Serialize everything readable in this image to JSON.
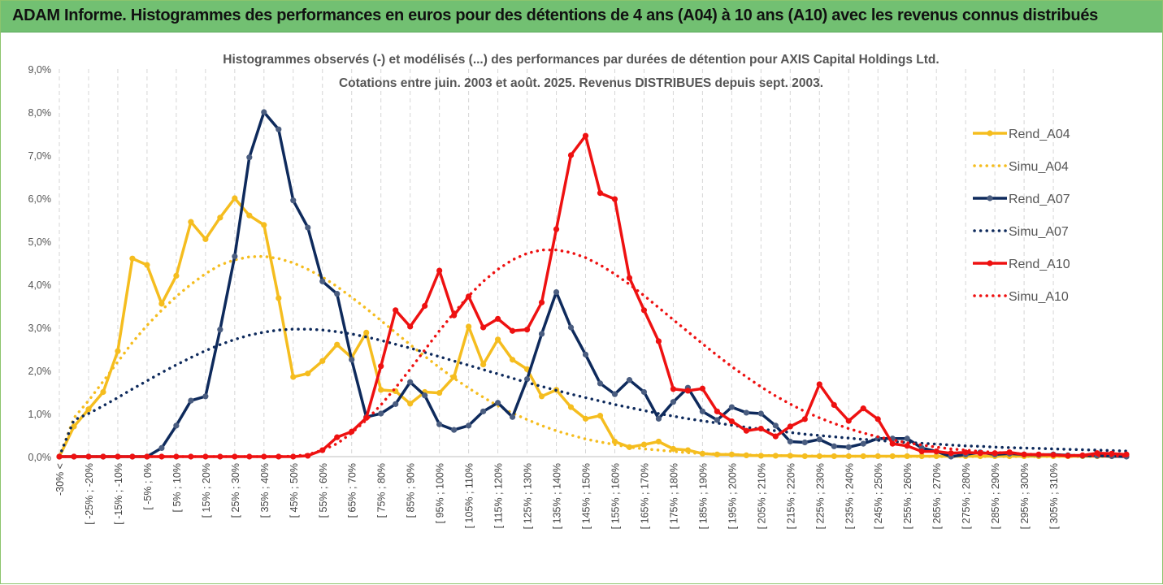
{
  "banner": {
    "title": "ADAM Informe. Histogrammes des performances en euros pour des détentions de 4 ans (A04) à 10 ans (A10) avec les revenus connus distribués"
  },
  "chart_data": {
    "type": "line",
    "title": "Histogrammes observés (-) et modélisés (...) des performances par durées de détention pour AXIS Capital Holdings Ltd.",
    "subtitle": "Cotations entre juin. 2003 et août. 2025. Revenus DISTRIBUES depuis sept. 2003.",
    "xlabel": "",
    "ylabel": "",
    "ylim": [
      0,
      9
    ],
    "yticks": [
      "0,0%",
      "1,0%",
      "2,0%",
      "3,0%",
      "4,0%",
      "5,0%",
      "6,0%",
      "7,0%",
      "8,0%",
      "9,0%"
    ],
    "grid": "vertical dashed",
    "legend": "right",
    "xticklabels": [
      "-30% <",
      "[ -25% ; -20%",
      "[ -15% ; -10%",
      "[ -5% ; 0%",
      "[ 5% ; 10%",
      "[ 15% ; 20%",
      "[ 25% ; 30%",
      "[ 35% ; 40%",
      "[ 45% ; 50%",
      "[ 55% ; 60%",
      "[ 65% ; 70%",
      "[ 75% ; 80%",
      "[ 85% ; 90%",
      "[ 95% ; 100%",
      "[ 105% ; 110%",
      "[ 115% ; 120%",
      "[ 125% ; 130%",
      "[ 135% ; 140%",
      "[ 145% ; 150%",
      "[ 155% ; 160%",
      "[ 165% ; 170%",
      "[ 175% ; 180%",
      "[ 185% ; 190%",
      "[ 195% ; 200%",
      "[ 205% ; 210%",
      "[ 215% ; 220%",
      "[ 225% ; 230%",
      "[ 235% ; 240%",
      "[ 245% ; 250%",
      "[ 255% ; 260%",
      "[ 265% ; 270%",
      "[ 275% ; 280%",
      "[ 285% ; 290%",
      "[ 295% ; 300%",
      "[ 305% ; 310%"
    ],
    "series": [
      {
        "name": "Rend_A04",
        "style": "solid-markers",
        "color": "#f5bd1f",
        "values": [
          0,
          0.7,
          1.1,
          1.5,
          2.45,
          4.6,
          4.45,
          3.55,
          4.2,
          5.45,
          5.05,
          5.55,
          6.0,
          5.6,
          5.38,
          3.68,
          1.85,
          1.93,
          2.22,
          2.6,
          2.3,
          2.88,
          1.55,
          1.52,
          1.23,
          1.5,
          1.48,
          1.85,
          3.02,
          2.14,
          2.72,
          2.25,
          2.03,
          1.4,
          1.55,
          1.15,
          0.88,
          0.95,
          0.35,
          0.22,
          0.28,
          0.35,
          0.18,
          0.15,
          0.07,
          0.05,
          0.05,
          0.03,
          0.02,
          0.02,
          0.02,
          0.01,
          0.01,
          0.01,
          0.01,
          0.01,
          0.01,
          0.01,
          0.01,
          0.01,
          0.01,
          0.01,
          0.01,
          0.01,
          0.01,
          0.01,
          0.01,
          0.01,
          0.01,
          0.01,
          0.01,
          0.01,
          0.01,
          0.01
        ]
      },
      {
        "name": "Simu_A04",
        "style": "dotted",
        "color": "#f5bd1f",
        "values": [
          0,
          0.9,
          1.3,
          1.75,
          2.2,
          2.65,
          3.05,
          3.4,
          3.72,
          4.0,
          4.25,
          4.45,
          4.57,
          4.64,
          4.65,
          4.6,
          4.5,
          4.35,
          4.17,
          3.95,
          3.7,
          3.44,
          3.16,
          2.88,
          2.6,
          2.33,
          2.07,
          1.82,
          1.59,
          1.38,
          1.18,
          1.01,
          0.86,
          0.72,
          0.6,
          0.5,
          0.41,
          0.34,
          0.28,
          0.22,
          0.18,
          0.15,
          0.12,
          0.09,
          0.07,
          0.06,
          0.05,
          0.04,
          0.03,
          0.02,
          0.02,
          0.015,
          0.012,
          0.01,
          0.008,
          0.006,
          0.005,
          0.004,
          0.003,
          0.002,
          0.002,
          0.001,
          0.001,
          0.001,
          0.001,
          0.001,
          0.001,
          0.001,
          0.001,
          0.001,
          0.001,
          0.001,
          0.001,
          0.001
        ]
      },
      {
        "name": "Rend_A07",
        "style": "solid-markers",
        "color": "#0e2a5c",
        "values": [
          0,
          0,
          0,
          0,
          0,
          0,
          0,
          0.2,
          0.72,
          1.3,
          1.4,
          2.95,
          4.65,
          6.95,
          8.0,
          7.6,
          5.95,
          5.32,
          4.07,
          3.78,
          2.25,
          0.92,
          1.0,
          1.22,
          1.73,
          1.42,
          0.75,
          0.62,
          0.72,
          1.05,
          1.25,
          0.92,
          1.8,
          2.85,
          3.82,
          3.0,
          2.37,
          1.7,
          1.45,
          1.78,
          1.5,
          0.88,
          1.27,
          1.6,
          1.05,
          0.85,
          1.15,
          1.02,
          1.0,
          0.72,
          0.35,
          0.33,
          0.4,
          0.24,
          0.22,
          0.3,
          0.42,
          0.42,
          0.42,
          0.2,
          0.12,
          0.0,
          0.05,
          0.1,
          0.05,
          0.07,
          0.05,
          0.04,
          0.05,
          0.03,
          0.02,
          0.02,
          0.01,
          0.0
        ]
      },
      {
        "name": "Simu_A07",
        "style": "dotted",
        "color": "#0e2a5c",
        "values": [
          0,
          0.85,
          1.0,
          1.18,
          1.37,
          1.57,
          1.76,
          1.95,
          2.13,
          2.3,
          2.46,
          2.6,
          2.72,
          2.82,
          2.89,
          2.94,
          2.96,
          2.96,
          2.94,
          2.9,
          2.85,
          2.78,
          2.7,
          2.61,
          2.52,
          2.42,
          2.32,
          2.22,
          2.12,
          2.02,
          1.92,
          1.82,
          1.72,
          1.63,
          1.54,
          1.45,
          1.37,
          1.29,
          1.21,
          1.14,
          1.07,
          1.0,
          0.94,
          0.88,
          0.83,
          0.78,
          0.73,
          0.68,
          0.64,
          0.6,
          0.56,
          0.52,
          0.49,
          0.46,
          0.43,
          0.4,
          0.38,
          0.35,
          0.33,
          0.31,
          0.29,
          0.27,
          0.25,
          0.24,
          0.22,
          0.21,
          0.2,
          0.19,
          0.18,
          0.17,
          0.16,
          0.15,
          0.14,
          0.13
        ]
      },
      {
        "name": "Rend_A10",
        "style": "solid-markers",
        "color": "#ee1111",
        "values": [
          0,
          0,
          0,
          0,
          0,
          0,
          0,
          0,
          0,
          0,
          0,
          0,
          0,
          0,
          0,
          0,
          0,
          0.02,
          0.15,
          0.45,
          0.58,
          0.9,
          2.1,
          3.4,
          3.02,
          3.5,
          4.32,
          3.28,
          3.72,
          3.0,
          3.2,
          2.92,
          2.95,
          3.58,
          5.28,
          7.0,
          7.45,
          6.12,
          5.98,
          4.15,
          3.4,
          2.68,
          1.57,
          1.53,
          1.58,
          1.05,
          0.82,
          0.6,
          0.65,
          0.47,
          0.7,
          0.87,
          1.68,
          1.2,
          0.83,
          1.12,
          0.87,
          0.3,
          0.25,
          0.12,
          0.12,
          0.08,
          0.1,
          0.08,
          0.08,
          0.1,
          0.05,
          0.05,
          0.04,
          0.02,
          0.03,
          0.08,
          0.07,
          0.05
        ]
      },
      {
        "name": "Simu_A10",
        "style": "dotted",
        "color": "#ee1111",
        "values": [
          0,
          0,
          0,
          0,
          0,
          0,
          0,
          0,
          0,
          0,
          0,
          0,
          0,
          0,
          0,
          0,
          0.01,
          0.05,
          0.15,
          0.3,
          0.55,
          0.85,
          1.2,
          1.6,
          2.03,
          2.48,
          2.92,
          3.34,
          3.73,
          4.07,
          4.35,
          4.57,
          4.72,
          4.8,
          4.8,
          4.74,
          4.62,
          4.45,
          4.24,
          4.0,
          3.74,
          3.46,
          3.18,
          2.9,
          2.62,
          2.35,
          2.09,
          1.85,
          1.62,
          1.41,
          1.22,
          1.05,
          0.9,
          0.77,
          0.65,
          0.55,
          0.46,
          0.39,
          0.32,
          0.27,
          0.22,
          0.18,
          0.15,
          0.12,
          0.1,
          0.08,
          0.06,
          0.05,
          0.04,
          0.03,
          0.03,
          0.02,
          0.02,
          0.01
        ]
      }
    ]
  }
}
